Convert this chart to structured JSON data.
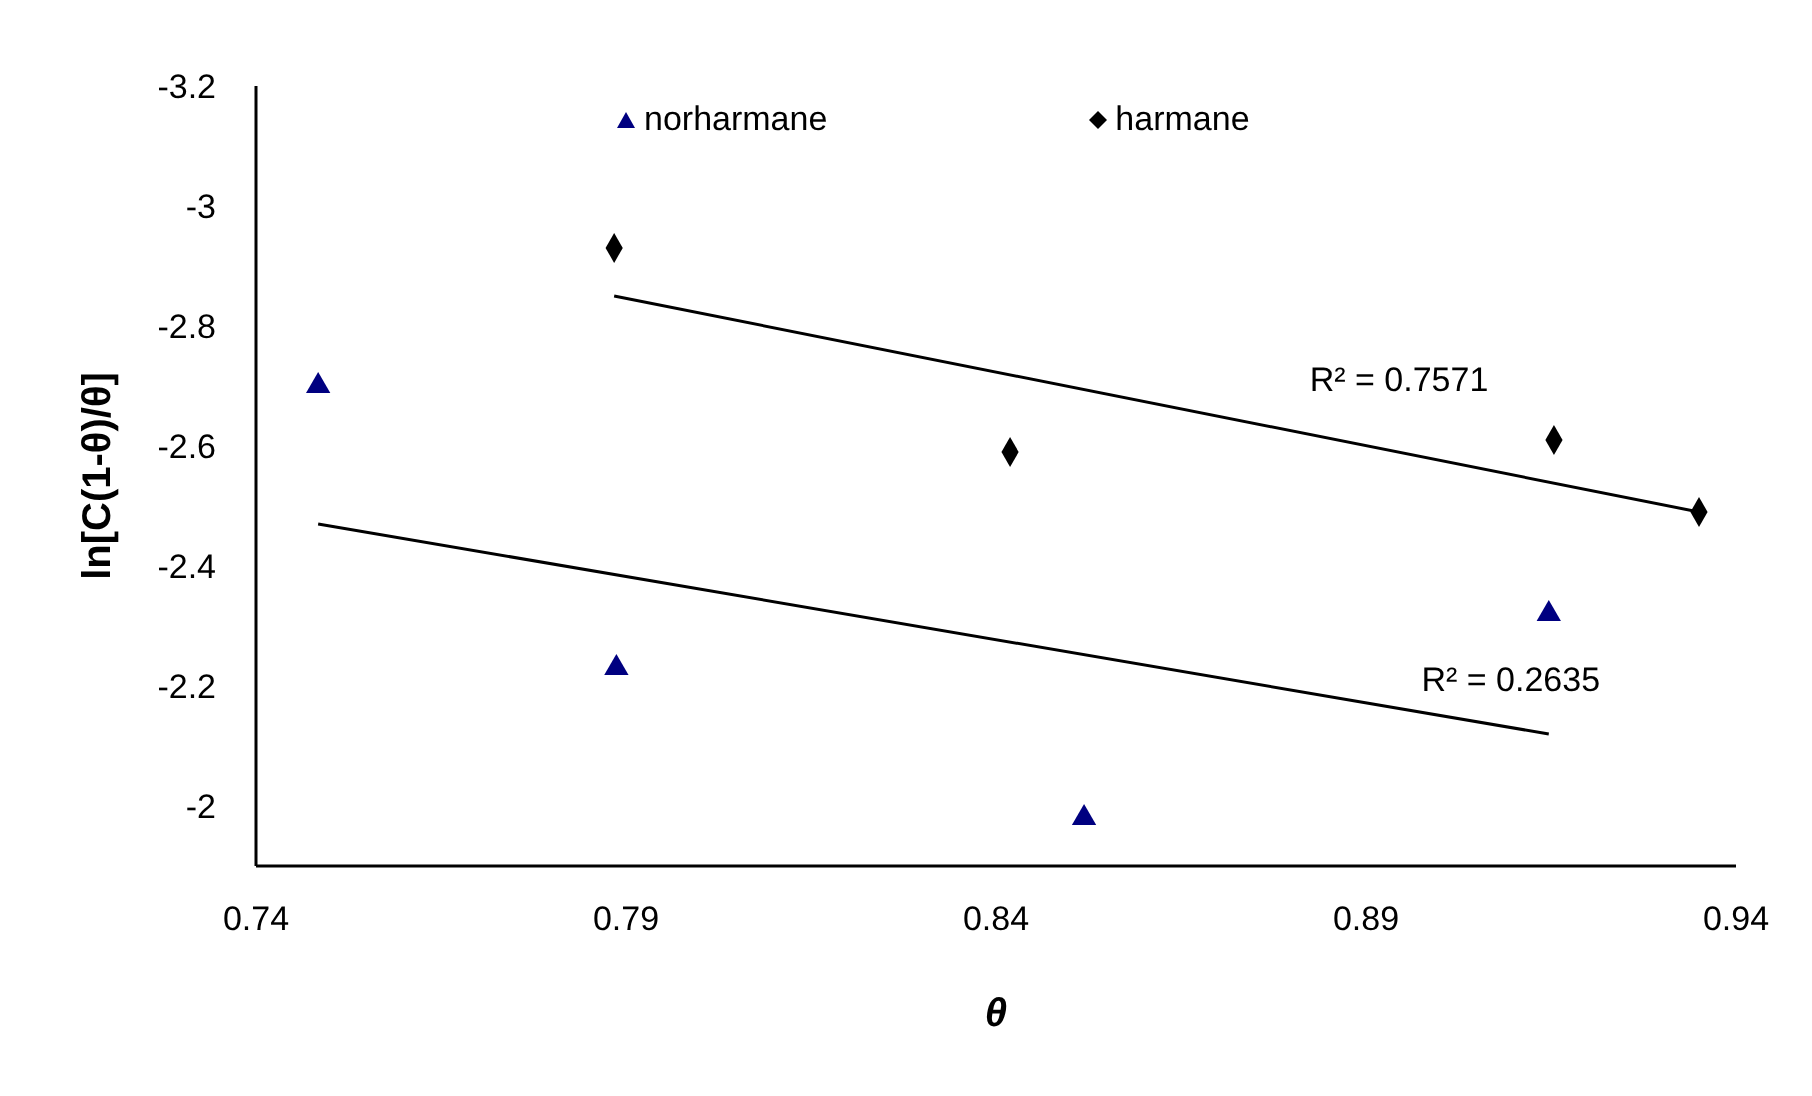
{
  "chart_data": {
    "type": "scatter",
    "xlabel": "θ",
    "ylabel": "ln[C(1-θ)/θ]",
    "series": [
      {
        "name": "norharmane",
        "marker": "triangle",
        "color": "#000080",
        "x": [
          0.7484,
          0.7887,
          0.8519,
          0.9147
        ],
        "values": [
          -2.7,
          -2.23,
          -1.98,
          -2.32
        ]
      },
      {
        "name": "harmane",
        "marker": "diamond",
        "color": "#000000",
        "x": [
          0.7884,
          0.8419,
          0.9154,
          0.935
        ],
        "values": [
          -2.93,
          -2.59,
          -2.61,
          -2.49
        ]
      },
      {
        "type": "line",
        "color": "#000000",
        "x": [
          0.7884,
          0.935
        ],
        "values": [
          -2.85,
          -2.49
        ]
      },
      {
        "type": "line",
        "color": "#000000",
        "x": [
          0.7484,
          0.9147
        ],
        "values": [
          -2.47,
          -2.12
        ]
      }
    ],
    "annotations": [
      "R² = 0.7571",
      "R² = 0.2635"
    ],
    "xlim": [
      0.74,
      0.94
    ],
    "xticks": [
      0.74,
      0.79,
      0.84,
      0.89,
      0.94
    ],
    "ylim": [
      -1.9,
      -3.2
    ],
    "yticks": [
      -3.2,
      -3,
      -2.8,
      -2.6,
      -2.4,
      -2.2,
      -2
    ],
    "grid": false,
    "legend": "top"
  }
}
